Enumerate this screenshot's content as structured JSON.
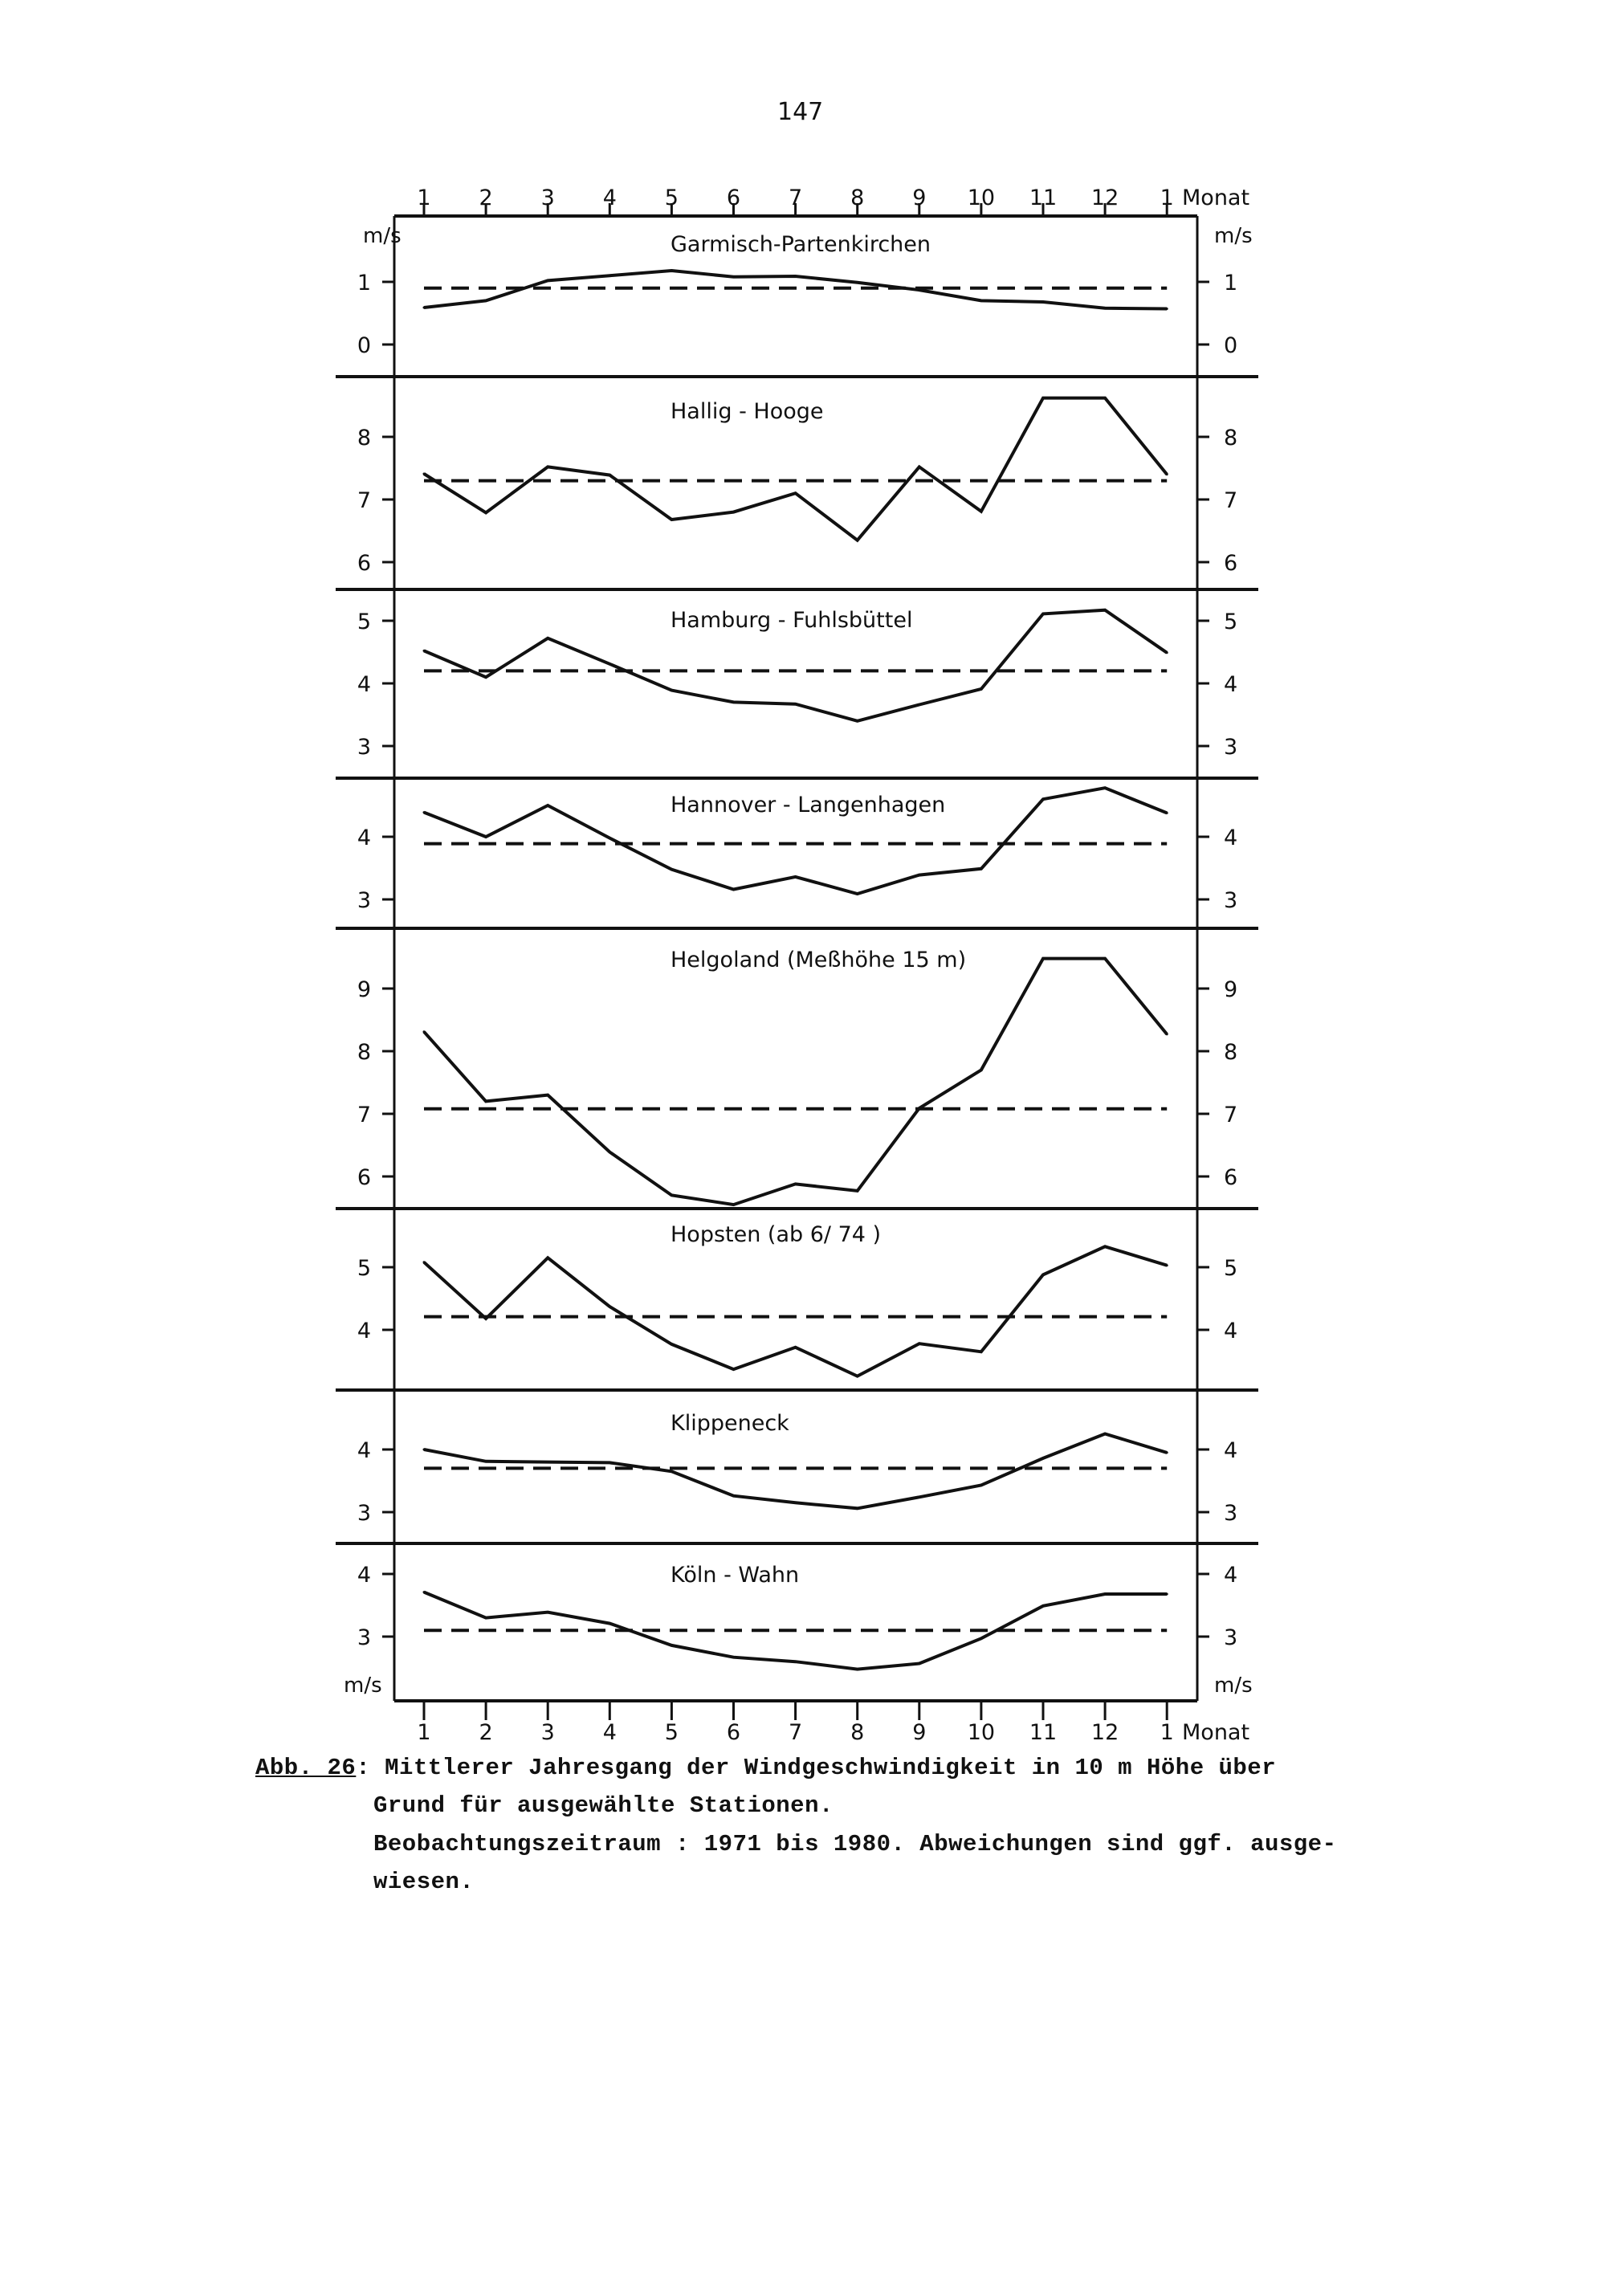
{
  "page_number": "147",
  "caption": {
    "label": "Abb. 26",
    "colon": ":",
    "line1": "Mittlerer Jahresgang der Windgeschwindigkeit in 10 m Höhe über",
    "line2": "Grund für ausgewählte Stationen.",
    "line3": "Beobachtungszeitraum : 1971 bis 1980. Abweichungen sind ggf. ausge-",
    "line4": "wiesen."
  },
  "chart_data": {
    "type": "line",
    "x": [
      "1",
      "2",
      "3",
      "4",
      "5",
      "6",
      "7",
      "8",
      "9",
      "10",
      "11",
      "12",
      "1"
    ],
    "xlabel": "Monat",
    "ylabel": "m/s",
    "grid": false,
    "line_styles": {
      "monthly": "solid",
      "annual_mean": "dashed"
    },
    "colors": {
      "line": "#111111"
    },
    "panels": [
      {
        "title": "Garmisch-Partenkirchen",
        "yticks": [
          "1",
          "0"
        ],
        "ytick_values": [
          1,
          0
        ],
        "ylim": [
          -0.4,
          2.2
        ],
        "values": [
          0.59,
          0.7,
          1.02,
          1.1,
          1.18,
          1.08,
          1.09,
          0.99,
          0.87,
          0.7,
          0.68,
          0.58,
          0.57
        ],
        "mean": 0.9
      },
      {
        "title": "Hallig - Hooge",
        "yticks": [
          "8",
          "7",
          "6"
        ],
        "ytick_values": [
          8,
          7,
          6
        ],
        "ylim": [
          5.8,
          9.2
        ],
        "values": [
          7.41,
          6.79,
          7.52,
          7.39,
          6.68,
          6.8,
          7.1,
          6.35,
          7.52,
          6.81,
          8.62,
          8.62,
          7.4
        ],
        "mean": 7.3
      },
      {
        "title": "Hamburg - Fuhlsbüttel",
        "yticks": [
          "5",
          "4",
          "3"
        ],
        "ytick_values": [
          5,
          4,
          3
        ],
        "ylim": [
          2.7,
          5.6
        ],
        "values": [
          4.52,
          4.1,
          4.72,
          4.31,
          3.89,
          3.7,
          3.67,
          3.4,
          3.66,
          3.91,
          5.11,
          5.17,
          4.49
        ],
        "mean": 4.2
      },
      {
        "title": "Hannover - Langenhagen",
        "yticks": [
          "4",
          "3"
        ],
        "ytick_values": [
          4,
          3
        ],
        "ylim": [
          2.6,
          5.0
        ],
        "values": [
          4.39,
          4.0,
          4.5,
          3.98,
          3.48,
          3.16,
          3.36,
          3.09,
          3.39,
          3.49,
          4.6,
          4.78,
          4.38
        ],
        "mean": 3.89
      },
      {
        "title": "Helgoland (Meßhöhe 15 m)",
        "yticks": [
          "9",
          "8",
          "7",
          "6"
        ],
        "ytick_values": [
          9,
          8,
          7,
          6
        ],
        "ylim": [
          5.5,
          10.0
        ],
        "values": [
          8.31,
          7.2,
          7.3,
          6.39,
          5.7,
          5.55,
          5.88,
          5.77,
          7.09,
          7.7,
          9.48,
          9.48,
          8.27
        ],
        "mean": 7.08
      },
      {
        "title": "Hopsten (ab 6/ 74 )",
        "yticks": [
          "5",
          "4"
        ],
        "ytick_values": [
          5,
          4
        ],
        "ylim": [
          3.0,
          5.9
        ],
        "values": [
          5.08,
          4.18,
          5.15,
          4.37,
          3.77,
          3.37,
          3.72,
          3.26,
          3.78,
          3.65,
          4.88,
          5.33,
          5.03
        ],
        "mean": 4.21
      },
      {
        "title": "Klippeneck",
        "yticks": [
          "4",
          "3"
        ],
        "ytick_values": [
          4,
          3
        ],
        "ylim": [
          2.5,
          5.0
        ],
        "values": [
          4.0,
          3.81,
          3.8,
          3.79,
          3.65,
          3.26,
          3.15,
          3.06,
          3.24,
          3.43,
          3.86,
          4.25,
          3.95
        ],
        "mean": 3.7
      },
      {
        "title": "Köln - Wahn",
        "yticks": [
          "4",
          "3"
        ],
        "ytick_values": [
          4,
          3
        ],
        "ylim": [
          2.0,
          4.0
        ],
        "values": [
          3.71,
          3.3,
          3.39,
          3.21,
          2.86,
          2.67,
          2.6,
          2.48,
          2.57,
          2.97,
          3.49,
          3.68,
          3.68
        ],
        "mean": 3.1
      }
    ]
  }
}
